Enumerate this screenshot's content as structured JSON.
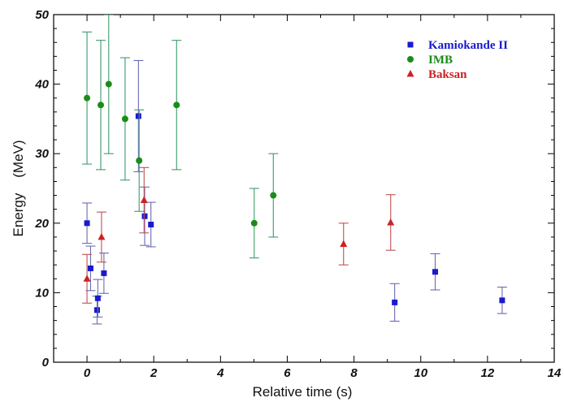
{
  "chart_data": {
    "type": "scatter",
    "title": "",
    "xlabel": "Relative time (s)",
    "ylabel": "Energy    (MeV)",
    "xlim": [
      -1,
      14
    ],
    "ylim": [
      0,
      50
    ],
    "xticks": [
      0,
      2,
      4,
      6,
      8,
      10,
      12,
      14
    ],
    "xtick_labels": [
      "0",
      "2",
      "4",
      "6",
      "8",
      "10",
      "12",
      "14"
    ],
    "yticks": [
      0,
      10,
      20,
      30,
      40,
      50
    ],
    "ytick_labels": [
      "0",
      "10",
      "20",
      "30",
      "40",
      "50"
    ],
    "grid": false,
    "legend_position": "top-right",
    "series": [
      {
        "name": "Kamiokande II",
        "marker": "square",
        "color": "#1a1acc",
        "errcolor": "#6a6ab8",
        "points": [
          {
            "x": 0.0,
            "y": 20.0,
            "err": 2.9
          },
          {
            "x": 0.107,
            "y": 13.5,
            "err": 3.2
          },
          {
            "x": 0.303,
            "y": 7.5,
            "err": 2.0
          },
          {
            "x": 0.324,
            "y": 9.2,
            "err": 2.7
          },
          {
            "x": 0.507,
            "y": 12.8,
            "err": 2.9
          },
          {
            "x": 1.541,
            "y": 35.4,
            "err": 8.0
          },
          {
            "x": 1.728,
            "y": 21.0,
            "err": 4.2
          },
          {
            "x": 1.915,
            "y": 19.8,
            "err": 3.2
          },
          {
            "x": 9.219,
            "y": 8.6,
            "err": 2.7
          },
          {
            "x": 10.433,
            "y": 13.0,
            "err": 2.6
          },
          {
            "x": 12.439,
            "y": 8.9,
            "err": 1.9
          }
        ]
      },
      {
        "name": "IMB",
        "marker": "circle",
        "color": "#1a8c1a",
        "errcolor": "#3c9c6c",
        "points": [
          {
            "x": 0.0,
            "y": 38.0,
            "err": 9.5
          },
          {
            "x": 0.412,
            "y": 37.0,
            "err": 9.3
          },
          {
            "x": 0.65,
            "y": 40.0,
            "err": 10.0
          },
          {
            "x": 1.141,
            "y": 35.0,
            "err": 8.8
          },
          {
            "x": 1.562,
            "y": 29.0,
            "err": 7.3
          },
          {
            "x": 2.684,
            "y": 37.0,
            "err": 9.3
          },
          {
            "x": 5.01,
            "y": 20.0,
            "err": 5.0
          },
          {
            "x": 5.582,
            "y": 24.0,
            "err": 6.0
          }
        ]
      },
      {
        "name": "Baksan",
        "marker": "triangle",
        "color": "#cc2222",
        "errcolor": "#c05050",
        "points": [
          {
            "x": 0.0,
            "y": 12.0,
            "err": 3.5
          },
          {
            "x": 0.435,
            "y": 18.0,
            "err": 3.6
          },
          {
            "x": 1.71,
            "y": 23.3,
            "err": 4.7
          },
          {
            "x": 7.687,
            "y": 17.0,
            "err": 3.0
          },
          {
            "x": 9.099,
            "y": 20.1,
            "err": 4.0
          }
        ]
      }
    ]
  }
}
